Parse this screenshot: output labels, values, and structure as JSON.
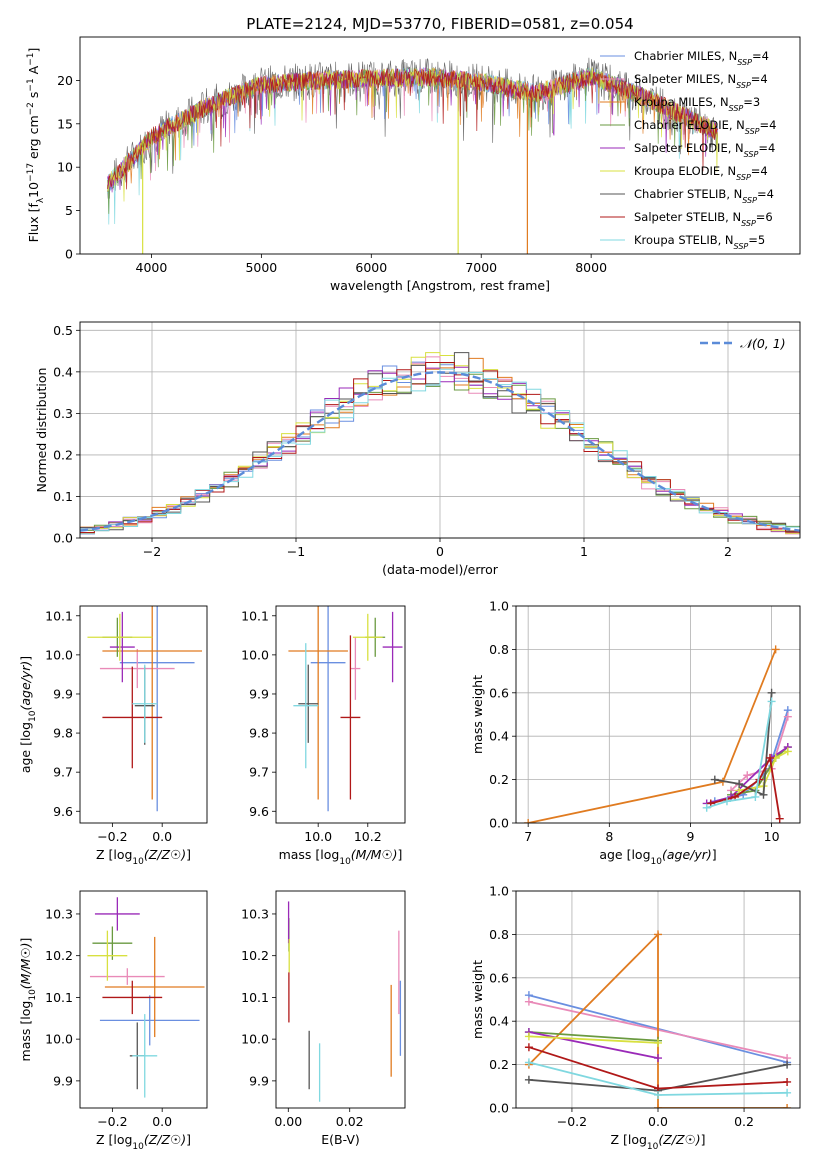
{
  "figure_title": "PLATE=2124, MJD=53770, FIBERID=0581, z=0.054",
  "series_legend": [
    {
      "base": "Chabrier MILES, N",
      "sub": "SSP",
      "tail": "=4",
      "color": "#6a8fe0"
    },
    {
      "base": "Salpeter MILES, N",
      "sub": "SSP",
      "tail": "=4",
      "color": "#e98ab8"
    },
    {
      "base": "Kroupa MILES, N",
      "sub": "SSP",
      "tail": "=3",
      "color": "#e07b20"
    },
    {
      "base": "Chabrier ELODIE, N",
      "sub": "SSP",
      "tail": "=4",
      "color": "#6a9a40"
    },
    {
      "base": "Salpeter ELODIE, N",
      "sub": "SSP",
      "tail": "=4",
      "color": "#9a2ab8"
    },
    {
      "base": "Kroupa ELODIE, N",
      "sub": "SSP",
      "tail": "=4",
      "color": "#d8e040"
    },
    {
      "base": "Chabrier STELIB, N",
      "sub": "SSP",
      "tail": "=4",
      "color": "#555555"
    },
    {
      "base": "Salpeter STELIB, N",
      "sub": "SSP",
      "tail": "=6",
      "color": "#b01818"
    },
    {
      "base": "Kroupa STELIB, N",
      "sub": "SSP",
      "tail": "=5",
      "color": "#80d8e0"
    }
  ],
  "chart_data": [
    {
      "id": "spectrum",
      "type": "line",
      "xlabel": "wavelength [Angstrom, rest frame]",
      "ylabel_parts": [
        "Flux [f",
        "λ",
        "10",
        "−17",
        " erg cm",
        "−2",
        " s",
        "−1",
        " A",
        "−1",
        "]"
      ],
      "xlim": [
        3350,
        9900
      ],
      "ylim": [
        0,
        25
      ],
      "xticks": [
        4000,
        5000,
        6000,
        7000,
        8000
      ],
      "yticks": [
        0,
        5,
        10,
        15,
        20
      ],
      "x_range_data": [
        3600,
        9150
      ],
      "continuum_anchors": {
        "x": [
          3600,
          3900,
          4000,
          4500,
          5000,
          5500,
          6000,
          6500,
          7000,
          7500,
          8000,
          8500,
          9150
        ],
        "y": [
          8,
          12,
          13.5,
          17,
          19.5,
          20,
          20.2,
          20.4,
          19.8,
          18.5,
          20.5,
          18,
          14
        ]
      },
      "drop_lines": [
        {
          "x": 3920,
          "color": "#d8e040"
        },
        {
          "x": 6790,
          "color": "#d8e040"
        },
        {
          "x": 7420,
          "color": "#e07b20"
        }
      ]
    },
    {
      "id": "residual-hist",
      "type": "histogram",
      "xlabel": "(data-model)/error",
      "ylabel": "Normed distribution",
      "xlim": [
        -2.5,
        2.5
      ],
      "ylim": [
        0,
        0.52
      ],
      "xticks": [
        -2,
        -1,
        0,
        1,
        2
      ],
      "yticks": [
        0.0,
        0.1,
        0.2,
        0.3,
        0.4,
        0.5
      ],
      "bin_width": 0.1,
      "bin_start": -2.5,
      "gaussian_label": "𝒩(0, 1)",
      "gaussian_color": "#5b8bd8",
      "gaussian": {
        "mean": 0,
        "sigma": 1
      }
    },
    {
      "id": "age-vs-Z",
      "type": "errorbar",
      "xlabel": "Z [log10(Z/Z☉)]",
      "ylabel": "age  [log10(age/yr)]",
      "xlim": [
        -0.33,
        0.18
      ],
      "ylim": [
        9.57,
        10.125
      ],
      "xticks": [
        -0.2,
        0.0
      ],
      "yticks": [
        9.6,
        9.7,
        9.8,
        9.9,
        10.0,
        10.1
      ],
      "points": [
        {
          "x": -0.02,
          "y": 9.98,
          "xerr": 0.15,
          "yerr": 0.38,
          "color": "#6a8fe0"
        },
        {
          "x": -0.1,
          "y": 9.965,
          "xerr": 0.15,
          "yerr": 0.05,
          "color": "#e98ab8"
        },
        {
          "x": -0.04,
          "y": 10.01,
          "xerr": 0.2,
          "yerr": 0.38,
          "color": "#e07b20"
        },
        {
          "x": -0.18,
          "y": 10.045,
          "xerr": 0.06,
          "yerr": 0.05,
          "color": "#6a9a40"
        },
        {
          "x": -0.16,
          "y": 10.02,
          "xerr": 0.05,
          "yerr": 0.09,
          "color": "#9a2ab8"
        },
        {
          "x": -0.17,
          "y": 10.045,
          "xerr": 0.13,
          "yerr": 0.06,
          "color": "#d8e040"
        },
        {
          "x": -0.07,
          "y": 9.87,
          "xerr": 0.04,
          "yerr": 0.1,
          "color": "#555555"
        },
        {
          "x": -0.12,
          "y": 9.84,
          "xerr": 0.12,
          "yerr": 0.13,
          "color": "#b01818"
        },
        {
          "x": -0.07,
          "y": 9.875,
          "xerr": 0.05,
          "yerr": 0.1,
          "color": "#80d8e0"
        }
      ]
    },
    {
      "id": "age-vs-mass",
      "type": "errorbar",
      "xlabel": "mass [log10(M/M☉)]",
      "ylabel": "",
      "xlim": [
        9.83,
        10.35
      ],
      "ylim": [
        9.57,
        10.125
      ],
      "xticks": [
        10.0,
        10.2
      ],
      "yticks": [
        9.6,
        9.7,
        9.8,
        9.9,
        10.0,
        10.1
      ],
      "points": [
        {
          "x": 10.04,
          "y": 9.98,
          "xerr": 0.07,
          "yerr": 0.38,
          "color": "#6a8fe0"
        },
        {
          "x": 10.15,
          "y": 9.965,
          "xerr": 0.02,
          "yerr": 0.08,
          "color": "#e98ab8"
        },
        {
          "x": 10.0,
          "y": 10.01,
          "xerr": 0.12,
          "yerr": 0.38,
          "color": "#e07b20"
        },
        {
          "x": 10.23,
          "y": 10.045,
          "xerr": 0.04,
          "yerr": 0.05,
          "color": "#6a9a40"
        },
        {
          "x": 10.3,
          "y": 10.02,
          "xerr": 0.04,
          "yerr": 0.09,
          "color": "#9a2ab8"
        },
        {
          "x": 10.2,
          "y": 10.045,
          "xerr": 0.06,
          "yerr": 0.06,
          "color": "#d8e040"
        },
        {
          "x": 9.96,
          "y": 9.875,
          "xerr": 0.04,
          "yerr": 0.1,
          "color": "#555555"
        },
        {
          "x": 10.13,
          "y": 9.84,
          "xerr": 0.04,
          "yerr": 0.21,
          "color": "#b01818"
        },
        {
          "x": 9.95,
          "y": 9.87,
          "xerr": 0.05,
          "yerr": 0.16,
          "color": "#80d8e0"
        }
      ]
    },
    {
      "id": "mass-weight-vs-age",
      "type": "line",
      "xlabel": "age  [log10(age/yr)]",
      "ylabel": "mass weight",
      "xlim": [
        6.85,
        10.35
      ],
      "ylim": [
        0,
        1.0
      ],
      "xticks": [
        7,
        8,
        9,
        10
      ],
      "yticks": [
        0.0,
        0.2,
        0.4,
        0.6,
        0.8,
        1.0
      ],
      "series": [
        {
          "color": "#6a8fe0",
          "x": [
            9.3,
            9.65,
            9.97,
            10.2
          ],
          "y": [
            0.1,
            0.13,
            0.25,
            0.52
          ]
        },
        {
          "color": "#e98ab8",
          "x": [
            9.5,
            9.7,
            10.0,
            10.2
          ],
          "y": [
            0.15,
            0.22,
            0.25,
            0.49
          ]
        },
        {
          "color": "#e07b20",
          "x": [
            7.0,
            9.4,
            10.05
          ],
          "y": [
            0.0,
            0.19,
            0.8
          ]
        },
        {
          "color": "#6a9a40",
          "x": [
            9.5,
            9.8,
            10.05,
            10.2
          ],
          "y": [
            0.13,
            0.15,
            0.3,
            0.35
          ]
        },
        {
          "color": "#9a2ab8",
          "x": [
            9.2,
            9.5,
            10.0,
            10.2
          ],
          "y": [
            0.09,
            0.12,
            0.3,
            0.35
          ]
        },
        {
          "color": "#d8e040",
          "x": [
            9.6,
            9.9,
            10.05,
            10.2
          ],
          "y": [
            0.15,
            0.17,
            0.3,
            0.33
          ]
        },
        {
          "color": "#555555",
          "x": [
            9.3,
            9.6,
            9.9,
            10.0
          ],
          "y": [
            0.2,
            0.18,
            0.13,
            0.6
          ]
        },
        {
          "color": "#b01818",
          "x": [
            9.25,
            9.55,
            9.85,
            9.98,
            10.1
          ],
          "y": [
            0.09,
            0.12,
            0.2,
            0.3,
            0.02
          ]
        },
        {
          "color": "#80d8e0",
          "x": [
            9.2,
            9.45,
            9.8,
            10.0
          ],
          "y": [
            0.07,
            0.1,
            0.12,
            0.56
          ]
        }
      ]
    },
    {
      "id": "mass-vs-Z",
      "type": "errorbar",
      "xlabel": "Z [log10(Z/Z☉)]",
      "ylabel": "mass [log10(M/M☉)]",
      "xlim": [
        -0.33,
        0.18
      ],
      "ylim": [
        9.835,
        10.355
      ],
      "xticks": [
        -0.2,
        0.0
      ],
      "yticks": [
        9.9,
        10.0,
        10.1,
        10.2,
        10.3
      ],
      "points": [
        {
          "x": -0.05,
          "y": 10.045,
          "xerr": 0.2,
          "yerr": 0.06,
          "color": "#6a8fe0"
        },
        {
          "x": -0.14,
          "y": 10.15,
          "xerr": 0.15,
          "yerr": 0.02,
          "color": "#e98ab8"
        },
        {
          "x": -0.03,
          "y": 10.125,
          "xerr": 0.2,
          "yerr": 0.12,
          "color": "#e07b20"
        },
        {
          "x": -0.2,
          "y": 10.23,
          "xerr": 0.08,
          "yerr": 0.04,
          "color": "#6a9a40"
        },
        {
          "x": -0.18,
          "y": 10.3,
          "xerr": 0.09,
          "yerr": 0.04,
          "color": "#9a2ab8"
        },
        {
          "x": -0.22,
          "y": 10.2,
          "xerr": 0.08,
          "yerr": 0.06,
          "color": "#d8e040"
        },
        {
          "x": -0.1,
          "y": 9.96,
          "xerr": 0.03,
          "yerr": 0.08,
          "color": "#555555"
        },
        {
          "x": -0.12,
          "y": 10.1,
          "xerr": 0.12,
          "yerr": 0.04,
          "color": "#b01818"
        },
        {
          "x": -0.07,
          "y": 9.96,
          "xerr": 0.05,
          "yerr": 0.1,
          "color": "#80d8e0"
        }
      ]
    },
    {
      "id": "mass-vs-ebv",
      "type": "errorbar",
      "xlabel": "E(B-V)",
      "ylabel": "",
      "xlim": [
        -0.004,
        0.038
      ],
      "ylim": [
        9.835,
        10.355
      ],
      "xticks": [
        0.0,
        0.02
      ],
      "yticks": [
        9.9,
        10.0,
        10.1,
        10.2,
        10.3
      ],
      "points": [
        {
          "x": 0.0365,
          "y": 10.05,
          "xerr": 0.0,
          "yerr": 0.09,
          "color": "#6a8fe0"
        },
        {
          "x": 0.036,
          "y": 10.16,
          "xerr": 0.0,
          "yerr": 0.1,
          "color": "#e98ab8"
        },
        {
          "x": 0.0335,
          "y": 10.02,
          "xerr": 0.0,
          "yerr": 0.11,
          "color": "#e07b20"
        },
        {
          "x": 0.0002,
          "y": 10.25,
          "xerr": 0.0,
          "yerr": 0.04,
          "color": "#6a9a40"
        },
        {
          "x": 0.0001,
          "y": 10.28,
          "xerr": 0.0,
          "yerr": 0.05,
          "color": "#9a2ab8"
        },
        {
          "x": 0.0003,
          "y": 10.2,
          "xerr": 0.0,
          "yerr": 0.04,
          "color": "#d8e040"
        },
        {
          "x": 0.0068,
          "y": 9.95,
          "xerr": 0.0,
          "yerr": 0.07,
          "color": "#555555"
        },
        {
          "x": 0.0002,
          "y": 10.1,
          "xerr": 0.0,
          "yerr": 0.06,
          "color": "#b01818"
        },
        {
          "x": 0.0102,
          "y": 9.92,
          "xerr": 0.0,
          "yerr": 0.07,
          "color": "#80d8e0"
        }
      ]
    },
    {
      "id": "mass-weight-vs-Z",
      "type": "line",
      "xlabel": "Z [log10(Z/Z☉)]",
      "ylabel": "mass weight",
      "xlim": [
        -0.33,
        0.33
      ],
      "ylim": [
        0,
        1.0
      ],
      "xticks": [
        -0.2,
        0.0,
        0.2
      ],
      "yticks": [
        0.0,
        0.2,
        0.4,
        0.6,
        0.8,
        1.0
      ],
      "series": [
        {
          "color": "#6a8fe0",
          "x": [
            -0.3,
            0.3
          ],
          "y": [
            0.52,
            0.21
          ]
        },
        {
          "color": "#e98ab8",
          "x": [
            -0.3,
            0.3
          ],
          "y": [
            0.49,
            0.23
          ]
        },
        {
          "color": "#e07b20",
          "x": [
            -0.3,
            0.0,
            0.0,
            0.3
          ],
          "y": [
            0.2,
            0.8,
            0.0,
            0.0
          ]
        },
        {
          "color": "#6a9a40",
          "x": [
            -0.3,
            0.0
          ],
          "y": [
            0.35,
            0.31
          ]
        },
        {
          "color": "#9a2ab8",
          "x": [
            -0.3,
            0.0
          ],
          "y": [
            0.35,
            0.23
          ]
        },
        {
          "color": "#d8e040",
          "x": [
            -0.3,
            0.0
          ],
          "y": [
            0.33,
            0.3
          ]
        },
        {
          "color": "#555555",
          "x": [
            -0.3,
            0.0,
            0.3
          ],
          "y": [
            0.13,
            0.08,
            0.2
          ]
        },
        {
          "color": "#b01818",
          "x": [
            -0.3,
            0.0,
            0.3
          ],
          "y": [
            0.28,
            0.09,
            0.12
          ]
        },
        {
          "color": "#80d8e0",
          "x": [
            -0.3,
            0.0,
            0.3
          ],
          "y": [
            0.21,
            0.06,
            0.07
          ]
        }
      ]
    }
  ]
}
